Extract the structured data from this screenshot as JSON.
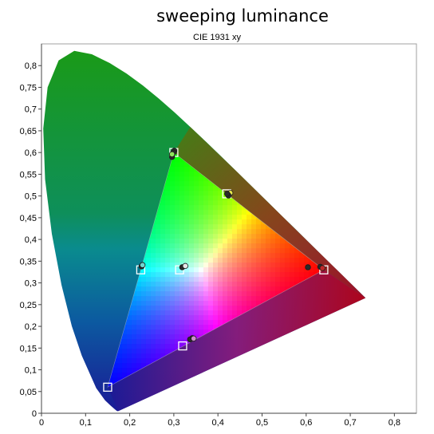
{
  "chart_data": {
    "type": "scatter",
    "title": "sweeping luminance",
    "subtitle": "CIE 1931 xy",
    "xlabel": "",
    "ylabel": "",
    "xlim": [
      0,
      0.85
    ],
    "ylim": [
      0,
      0.85
    ],
    "x_ticks": [
      "0",
      "0,1",
      "0,2",
      "0,3",
      "0,4",
      "0,5",
      "0,6",
      "0,7",
      "0,8"
    ],
    "y_ticks": [
      "0",
      "0,05",
      "0,1",
      "0,15",
      "0,2",
      "0,25",
      "0,3",
      "0,35",
      "0,4",
      "0,45",
      "0,5",
      "0,55",
      "0,6",
      "0,65",
      "0,7",
      "0,75",
      "0,8"
    ],
    "grid": false,
    "gamut_triangle": [
      {
        "x": 0.3,
        "y": 0.6
      },
      {
        "x": 0.64,
        "y": 0.33
      },
      {
        "x": 0.15,
        "y": 0.06
      }
    ],
    "targets": [
      {
        "x": 0.3,
        "y": 0.6
      },
      {
        "x": 0.42,
        "y": 0.505
      },
      {
        "x": 0.64,
        "y": 0.33
      },
      {
        "x": 0.32,
        "y": 0.155
      },
      {
        "x": 0.15,
        "y": 0.06
      },
      {
        "x": 0.225,
        "y": 0.33
      },
      {
        "x": 0.313,
        "y": 0.33
      }
    ],
    "measured": [
      {
        "x": 0.301,
        "y": 0.604,
        "color": "#2a2a2a"
      },
      {
        "x": 0.299,
        "y": 0.6,
        "color": "#2a2a2a"
      },
      {
        "x": 0.296,
        "y": 0.59,
        "color": "#2a2a2a"
      },
      {
        "x": 0.296,
        "y": 0.596,
        "color": "#8fe35c"
      },
      {
        "x": 0.428,
        "y": 0.507,
        "color": "#e6e64a"
      },
      {
        "x": 0.424,
        "y": 0.501,
        "color": "#2a2a2a"
      },
      {
        "x": 0.421,
        "y": 0.505,
        "color": "#2a2a2a"
      },
      {
        "x": 0.604,
        "y": 0.336,
        "color": "#2a2a2a"
      },
      {
        "x": 0.632,
        "y": 0.337,
        "color": "#2a2a2a"
      },
      {
        "x": 0.637,
        "y": 0.334,
        "color": "#c0282a"
      },
      {
        "x": 0.342,
        "y": 0.173,
        "color": "#2a2a2a"
      },
      {
        "x": 0.337,
        "y": 0.17,
        "color": "#2a2a2a"
      },
      {
        "x": 0.345,
        "y": 0.172,
        "color": "#d08ad0"
      },
      {
        "x": 0.227,
        "y": 0.338,
        "color": "#2a2a2a"
      },
      {
        "x": 0.229,
        "y": 0.341,
        "color": "#6fd6d0"
      },
      {
        "x": 0.319,
        "y": 0.336,
        "color": "#2a2a2a"
      },
      {
        "x": 0.326,
        "y": 0.339,
        "color": "#e7e7e7"
      }
    ]
  }
}
